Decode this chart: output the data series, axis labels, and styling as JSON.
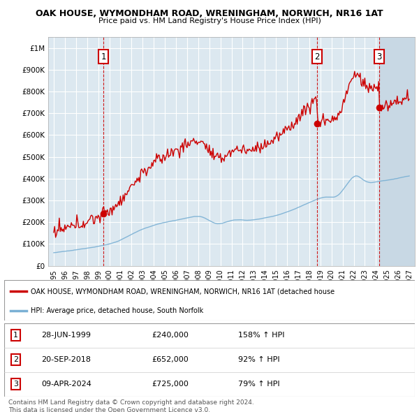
{
  "title1": "OAK HOUSE, WYMONDHAM ROAD, WRENINGHAM, NORWICH, NR16 1AT",
  "title2": "Price paid vs. HM Land Registry's House Price Index (HPI)",
  "legend_line1": "OAK HOUSE, WYMONDHAM ROAD, WRENINGHAM, NORWICH, NR16 1AT (detached house",
  "legend_line2": "HPI: Average price, detached house, South Norfolk",
  "footer1": "Contains HM Land Registry data © Crown copyright and database right 2024.",
  "footer2": "This data is licensed under the Open Government Licence v3.0.",
  "purchases": [
    {
      "label": "1",
      "date": "28-JUN-1999",
      "price": 240000,
      "hpi_pct": "158% ↑ HPI",
      "year": 1999.49
    },
    {
      "label": "2",
      "date": "20-SEP-2018",
      "price": 652000,
      "hpi_pct": "92% ↑ HPI",
      "year": 2018.72
    },
    {
      "label": "3",
      "date": "09-APR-2024",
      "price": 725000,
      "hpi_pct": "79% ↑ HPI",
      "year": 2024.27
    }
  ],
  "hpi_color": "#7ab0d4",
  "price_color": "#cc0000",
  "plot_bg": "#dce8f0",
  "grid_color": "#ffffff",
  "ylim": [
    0,
    1050000
  ],
  "xlim_start": 1994.5,
  "xlim_end": 2027.5,
  "yticks": [
    0,
    100000,
    200000,
    300000,
    400000,
    500000,
    600000,
    700000,
    800000,
    900000,
    1000000
  ],
  "ytick_labels": [
    "£0",
    "£100K",
    "£200K",
    "£300K",
    "£400K",
    "£500K",
    "£600K",
    "£700K",
    "£800K",
    "£900K",
    "£1M"
  ],
  "xticks": [
    1995,
    1996,
    1997,
    1998,
    1999,
    2000,
    2001,
    2002,
    2003,
    2004,
    2005,
    2006,
    2007,
    2008,
    2009,
    2010,
    2011,
    2012,
    2013,
    2014,
    2015,
    2016,
    2017,
    2018,
    2019,
    2020,
    2021,
    2022,
    2023,
    2024,
    2025,
    2026,
    2027
  ]
}
